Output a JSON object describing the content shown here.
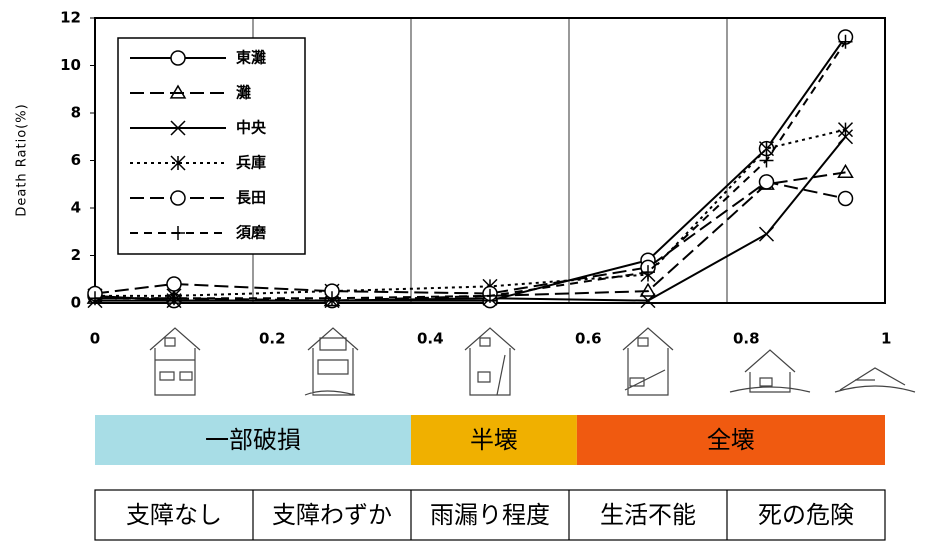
{
  "chart_data": {
    "type": "line",
    "y_label": "Death Ratio(%)",
    "x": [
      0,
      0.1,
      0.3,
      0.5,
      0.7,
      0.85,
      0.95
    ],
    "xlim": [
      0,
      1
    ],
    "xticks": [
      0,
      0.2,
      0.4,
      0.6,
      0.8,
      1
    ],
    "ylim": [
      0,
      12
    ],
    "yticks": [
      0,
      2,
      4,
      6,
      8,
      10,
      12
    ],
    "grid": "x",
    "legend": "upper left",
    "series": [
      {
        "name": "東灘",
        "color": "#000000",
        "line_style": "solid",
        "marker": "circle",
        "values": [
          0.3,
          0.1,
          0.1,
          0.1,
          1.8,
          6.5,
          11.2
        ]
      },
      {
        "name": "灘",
        "color": "#000000",
        "line_style": "longdash",
        "marker": "triangle",
        "values": [
          0.2,
          0.2,
          0.1,
          0.3,
          0.5,
          5.0,
          5.5
        ]
      },
      {
        "name": "中央",
        "color": "#000000",
        "line_style": "solid",
        "marker": "x",
        "values": [
          0.1,
          0.1,
          0.1,
          0.2,
          0.1,
          2.9,
          7.0
        ]
      },
      {
        "name": "兵庫",
        "color": "#000000",
        "line_style": "dotted",
        "marker": "star",
        "values": [
          0.3,
          0.3,
          0.5,
          0.7,
          1.2,
          6.5,
          7.3
        ]
      },
      {
        "name": "長田",
        "color": "#000000",
        "line_style": "longdash",
        "marker": "circle",
        "values": [
          0.4,
          0.8,
          0.5,
          0.4,
          1.5,
          5.1,
          4.4
        ]
      },
      {
        "name": "須磨",
        "color": "#000000",
        "line_style": "dash",
        "marker": "plus",
        "values": [
          0.2,
          0.2,
          0.2,
          0.3,
          1.3,
          6.0,
          11.0
        ]
      }
    ]
  },
  "damage_bands": [
    {
      "label": "一部破損",
      "from": 0,
      "to": 0.4,
      "color": "#a8dde6"
    },
    {
      "label": "半壊",
      "from": 0.4,
      "to": 0.61,
      "color": "#f0b000"
    },
    {
      "label": "全壊",
      "from": 0.61,
      "to": 1,
      "color": "#f05a10"
    }
  ],
  "usability": [
    "支障なし",
    "支障わずか",
    "雨漏り程度",
    "生活不能",
    "死の危険"
  ]
}
